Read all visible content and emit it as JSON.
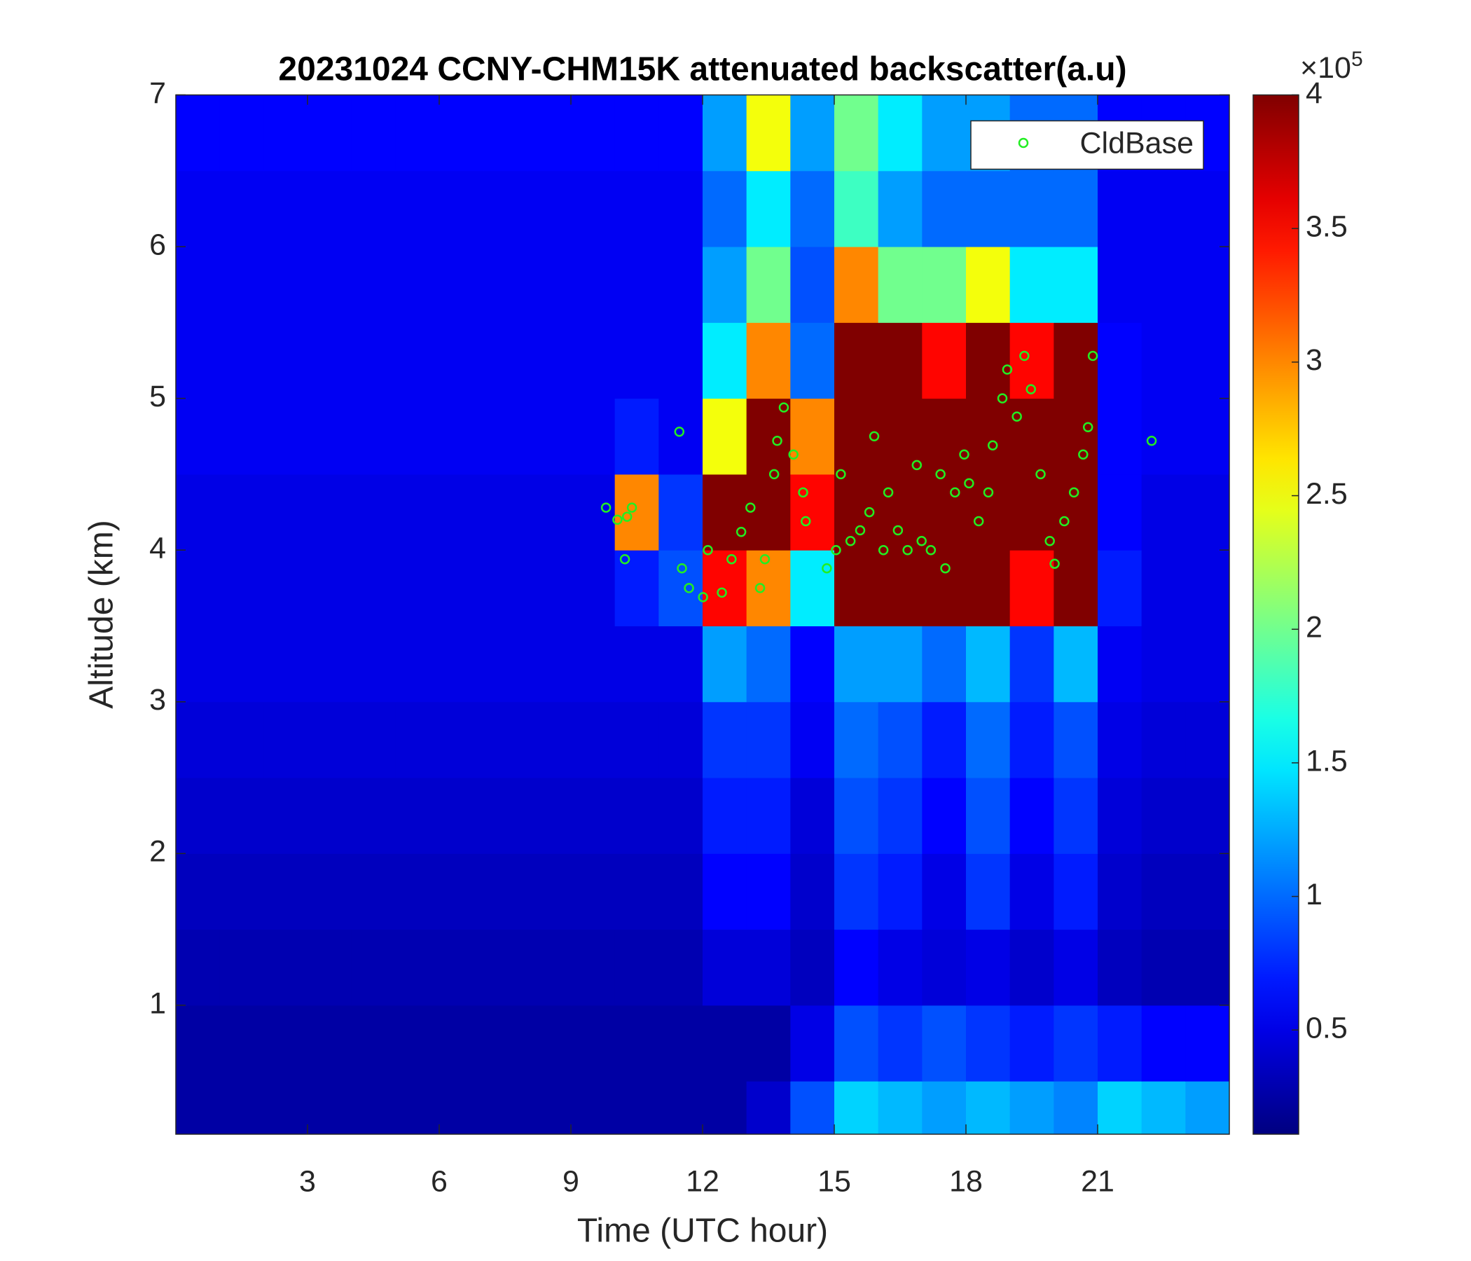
{
  "chart_data": {
    "type": "heatmap_scatter",
    "title": "20231024 CCNY-CHM15K attenuated backscatter(a.u)",
    "xlabel": "Time (UTC hour)",
    "ylabel": "Altitude (km)",
    "xlim": [
      0,
      24
    ],
    "xticks": [
      3,
      6,
      9,
      12,
      15,
      18,
      21
    ],
    "ylim": [
      0.15,
      7
    ],
    "yticks": [
      1,
      2,
      3,
      4,
      5,
      6,
      7
    ],
    "colormap": "jet",
    "clim": [
      0.11,
      4
    ],
    "cticks": [
      0.5,
      1,
      1.5,
      2,
      2.5,
      3,
      3.5,
      4
    ],
    "colorbar_multiplier": "×10",
    "colorbar_exponent": "5",
    "x_edges": [
      0,
      1,
      2,
      3,
      4,
      5,
      6,
      7,
      8,
      9,
      10,
      11,
      12,
      13,
      14,
      15,
      16,
      17,
      18,
      19,
      20,
      21,
      22,
      23,
      24
    ],
    "y_edges": [
      0.15,
      0.5,
      1,
      1.5,
      2,
      2.5,
      3,
      3.5,
      4,
      4.5,
      5,
      5.5,
      6,
      6.5,
      7
    ],
    "z": [
      [
        0.25,
        0.25,
        0.25,
        0.25,
        0.25,
        0.25,
        0.25,
        0.25,
        0.25,
        0.25,
        0.25,
        0.25,
        0.25,
        0.4,
        0.9,
        1.4,
        1.3,
        1.2,
        1.3,
        1.2,
        1.1,
        1.4,
        1.3,
        1.2
      ],
      [
        0.25,
        0.25,
        0.25,
        0.25,
        0.25,
        0.25,
        0.25,
        0.25,
        0.25,
        0.25,
        0.25,
        0.25,
        0.25,
        0.25,
        0.5,
        0.9,
        0.8,
        0.9,
        0.8,
        0.7,
        0.8,
        0.7,
        0.6,
        0.6
      ],
      [
        0.3,
        0.3,
        0.3,
        0.3,
        0.3,
        0.3,
        0.3,
        0.3,
        0.3,
        0.3,
        0.3,
        0.3,
        0.45,
        0.45,
        0.35,
        0.6,
        0.5,
        0.45,
        0.5,
        0.4,
        0.5,
        0.35,
        0.3,
        0.3
      ],
      [
        0.35,
        0.35,
        0.35,
        0.35,
        0.35,
        0.35,
        0.35,
        0.35,
        0.35,
        0.35,
        0.35,
        0.35,
        0.6,
        0.6,
        0.4,
        0.8,
        0.7,
        0.5,
        0.8,
        0.5,
        0.7,
        0.4,
        0.35,
        0.35
      ],
      [
        0.4,
        0.4,
        0.4,
        0.4,
        0.4,
        0.4,
        0.4,
        0.4,
        0.4,
        0.4,
        0.4,
        0.4,
        0.7,
        0.7,
        0.45,
        0.9,
        0.8,
        0.6,
        0.9,
        0.6,
        0.8,
        0.45,
        0.4,
        0.4
      ],
      [
        0.45,
        0.45,
        0.45,
        0.45,
        0.45,
        0.45,
        0.45,
        0.45,
        0.45,
        0.45,
        0.45,
        0.45,
        0.8,
        0.8,
        0.55,
        1.0,
        0.9,
        0.7,
        1.0,
        0.7,
        0.9,
        0.5,
        0.45,
        0.45
      ],
      [
        0.5,
        0.5,
        0.5,
        0.5,
        0.5,
        0.5,
        0.5,
        0.5,
        0.5,
        0.5,
        0.5,
        0.5,
        1.2,
        1.0,
        0.6,
        1.2,
        1.2,
        1.0,
        1.3,
        0.8,
        1.3,
        0.55,
        0.5,
        0.5
      ],
      [
        0.5,
        0.5,
        0.5,
        0.5,
        0.5,
        0.5,
        0.5,
        0.5,
        0.5,
        0.5,
        0.7,
        0.9,
        3.5,
        3.0,
        1.5,
        4,
        4,
        4,
        4,
        3.5,
        4,
        0.7,
        0.5,
        0.5
      ],
      [
        0.5,
        0.5,
        0.5,
        0.5,
        0.5,
        0.5,
        0.5,
        0.5,
        0.5,
        0.5,
        3.0,
        0.8,
        4,
        4,
        3.5,
        4,
        4,
        4,
        4,
        4,
        4,
        0.6,
        0.5,
        0.5
      ],
      [
        0.55,
        0.55,
        0.55,
        0.55,
        0.55,
        0.55,
        0.55,
        0.55,
        0.55,
        0.55,
        0.7,
        0.55,
        2.5,
        4,
        3.0,
        4,
        4,
        4,
        4,
        4,
        4,
        0.6,
        0.55,
        0.55
      ],
      [
        0.55,
        0.55,
        0.55,
        0.55,
        0.55,
        0.55,
        0.55,
        0.55,
        0.55,
        0.55,
        0.55,
        0.55,
        1.5,
        3.0,
        1.0,
        4,
        4,
        3.5,
        4,
        3.5,
        4,
        0.6,
        0.55,
        0.55
      ],
      [
        0.55,
        0.55,
        0.55,
        0.55,
        0.55,
        0.55,
        0.55,
        0.55,
        0.55,
        0.55,
        0.55,
        0.55,
        1.2,
        2.0,
        0.9,
        3.0,
        2.0,
        2.0,
        2.5,
        1.5,
        1.5,
        0.55,
        0.55,
        0.55
      ],
      [
        0.55,
        0.55,
        0.55,
        0.55,
        0.55,
        0.55,
        0.55,
        0.55,
        0.55,
        0.55,
        0.55,
        0.55,
        1.0,
        1.5,
        1.0,
        1.8,
        1.2,
        1.0,
        1.0,
        1.0,
        1.0,
        0.55,
        0.55,
        0.55
      ],
      [
        0.6,
        0.6,
        0.6,
        0.6,
        0.6,
        0.6,
        0.6,
        0.6,
        0.6,
        0.6,
        0.6,
        0.6,
        1.2,
        2.5,
        1.2,
        2.0,
        1.5,
        1.2,
        1.2,
        1.0,
        1.0,
        0.6,
        0.6,
        0.6
      ]
    ],
    "legend": "top-right",
    "series": [
      {
        "name": "CldBase",
        "color": "#22ee22",
        "x": [
          9.8,
          10.06,
          10.28,
          10.39,
          10.23,
          11.47,
          11.53,
          11.69,
          12.01,
          12.12,
          12.44,
          12.66,
          12.88,
          13.09,
          13.31,
          13.42,
          13.63,
          13.7,
          13.85,
          14.07,
          14.29,
          14.35,
          14.83,
          15.04,
          15.15,
          15.37,
          15.59,
          15.8,
          15.91,
          16.12,
          16.23,
          16.45,
          16.67,
          16.88,
          16.99,
          17.2,
          17.42,
          17.53,
          17.75,
          17.96,
          18.07,
          18.29,
          18.51,
          18.61,
          18.83,
          18.94,
          19.16,
          19.33,
          19.48,
          19.7,
          19.91,
          20.02,
          20.24,
          20.46,
          20.67,
          20.78,
          20.89,
          22.23
        ],
        "y": [
          4.28,
          4.2,
          4.22,
          4.28,
          3.94,
          4.78,
          3.88,
          3.75,
          3.69,
          4.0,
          3.72,
          3.94,
          4.12,
          4.28,
          3.75,
          3.94,
          4.5,
          4.72,
          4.94,
          4.63,
          4.38,
          4.19,
          3.88,
          4.0,
          4.5,
          4.06,
          4.13,
          4.25,
          4.75,
          4.0,
          4.38,
          4.13,
          4.0,
          4.56,
          4.06,
          4.0,
          4.5,
          3.88,
          4.38,
          4.63,
          4.44,
          4.19,
          4.38,
          4.69,
          5.0,
          5.19,
          4.88,
          5.28,
          5.06,
          4.5,
          4.06,
          3.91,
          4.19,
          4.38,
          4.63,
          4.81,
          5.28,
          4.72
        ]
      }
    ]
  }
}
